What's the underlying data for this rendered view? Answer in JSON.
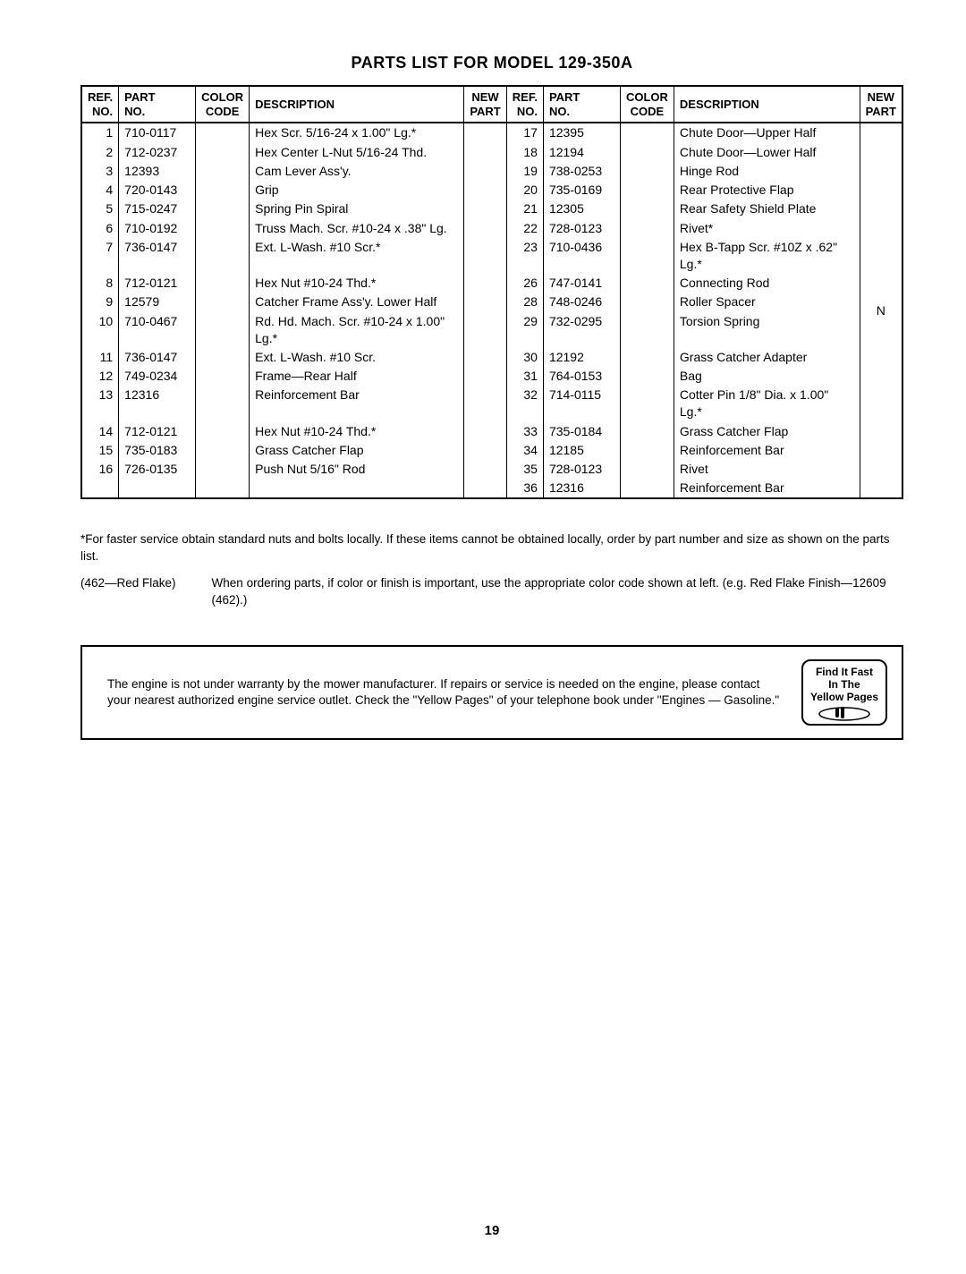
{
  "title": "PARTS LIST FOR MODEL 129-350A",
  "headers": {
    "ref": "REF.\nNO.",
    "part": "PART\nNO.",
    "color": "COLOR\nCODE",
    "desc": "DESCRIPTION",
    "newp": "NEW\nPART"
  },
  "left_rows": [
    {
      "ref": "1",
      "part": "710-0117",
      "desc": "Hex Scr. 5/16-24 x 1.00\" Lg.*"
    },
    {
      "ref": "2",
      "part": "712-0237",
      "desc": "Hex Center L-Nut 5/16-24 Thd."
    },
    {
      "ref": "3",
      "part": "12393",
      "desc": "Cam Lever Ass'y."
    },
    {
      "ref": "4",
      "part": "720-0143",
      "desc": "Grip"
    },
    {
      "ref": "5",
      "part": "715-0247",
      "desc": "Spring Pin Spiral"
    },
    {
      "ref": "6",
      "part": "710-0192",
      "desc": "Truss Mach. Scr. #10-24 x .38\" Lg."
    },
    {
      "ref": "7",
      "part": "736-0147",
      "desc": "Ext. L-Wash. #10 Scr.*"
    },
    {
      "ref": "8",
      "part": "712-0121",
      "desc": "Hex Nut #10-24 Thd.*"
    },
    {
      "ref": "9",
      "part": "12579",
      "desc": "Catcher Frame Ass'y. Lower Half"
    },
    {
      "ref": "10",
      "part": "710-0467",
      "desc": "Rd. Hd. Mach. Scr. #10-24 x 1.00\" Lg.*"
    },
    {
      "ref": "11",
      "part": "736-0147",
      "desc": "Ext. L-Wash. #10 Scr."
    },
    {
      "ref": "12",
      "part": "749-0234",
      "desc": "Frame—Rear Half"
    },
    {
      "ref": "13",
      "part": "12316",
      "desc": "Reinforcement Bar"
    },
    {
      "ref": "14",
      "part": "712-0121",
      "desc": "Hex Nut #10-24 Thd.*"
    },
    {
      "ref": "15",
      "part": "735-0183",
      "desc": "Grass Catcher Flap"
    },
    {
      "ref": "16",
      "part": "726-0135",
      "desc": "Push Nut 5/16\" Rod"
    }
  ],
  "right_rows": [
    {
      "ref": "17",
      "part": "12395",
      "desc": "Chute Door—Upper Half"
    },
    {
      "ref": "18",
      "part": "12194",
      "desc": "Chute Door—Lower Half"
    },
    {
      "ref": "19",
      "part": "738-0253",
      "desc": "Hinge Rod"
    },
    {
      "ref": "20",
      "part": "735-0169",
      "desc": "Rear Protective Flap"
    },
    {
      "ref": "21",
      "part": "12305",
      "desc": "Rear Safety Shield Plate"
    },
    {
      "ref": "22",
      "part": "728-0123",
      "desc": "Rivet*"
    },
    {
      "ref": "23",
      "part": "710-0436",
      "desc": "Hex B-Tapp Scr. #10Z x .62\" Lg.*"
    },
    {
      "ref": "26",
      "part": "747-0141",
      "desc": "Connecting Rod"
    },
    {
      "ref": "28",
      "part": "748-0246",
      "desc": "Roller Spacer"
    },
    {
      "ref": "29",
      "part": "732-0295",
      "desc": "Torsion Spring"
    },
    {
      "ref": "30",
      "part": "12192",
      "desc": "Grass Catcher Adapter"
    },
    {
      "ref": "31",
      "part": "764-0153",
      "desc": "Bag"
    },
    {
      "ref": "32",
      "part": "714-0115",
      "desc": "Cotter Pin 1/8\" Dia. x 1.00\" Lg.*"
    },
    {
      "ref": "33",
      "part": "735-0184",
      "desc": "Grass Catcher Flap"
    },
    {
      "ref": "34",
      "part": "12185",
      "desc": "Reinforcement Bar"
    },
    {
      "ref": "35",
      "part": "728-0123",
      "desc": "Rivet"
    },
    {
      "ref": "36",
      "part": "12316",
      "desc": "Reinforcement Bar"
    }
  ],
  "right_new_part": "N",
  "footnote": "*For faster service obtain standard nuts and bolts locally. If these items cannot be obtained locally, order by part number and size as shown on the parts list.",
  "color_note_left": "(462—Red Flake)",
  "color_note_right": "When ordering parts, if color or finish is important, use the appropriate color code shown at left.   (e.g. Red Flake Finish—12609 (462).)",
  "notice_text": "The engine is not under warranty by the mower manufacturer. If repairs or service is needed on the engine, please contact your nearest authorized engine service outlet. Check the \"Yellow Pages\" of your telephone book under \"Engines — Gasoline.\"",
  "yp_line1": "Find It Fast",
  "yp_line2": "In The",
  "yp_line3": "Yellow Pages",
  "page_number": "19"
}
